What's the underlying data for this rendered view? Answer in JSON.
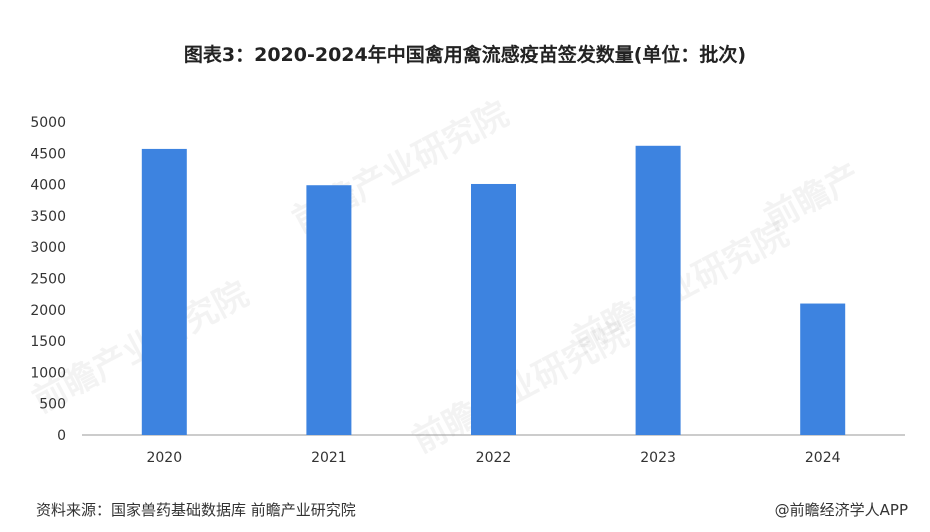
{
  "title": "图表3：2020-2024年中国禽用禽流感疫苗签发数量(单位：批次)",
  "footer": {
    "source": "资料来源：国家兽药基础数据库 前瞻产业研究院",
    "brand": "@前瞻经济学人APP"
  },
  "watermarks": [
    "前瞻产业研究院",
    "前瞻产业研究院",
    "前瞻产业研究院",
    "前瞻产",
    "前瞻产业研究院"
  ],
  "chart_data": {
    "type": "bar",
    "categories": [
      "2020",
      "2021",
      "2022",
      "2023",
      "2024"
    ],
    "values": [
      4570,
      3990,
      4010,
      4620,
      2100
    ],
    "ylim": [
      0,
      5000
    ],
    "yticks": [
      0,
      500,
      1000,
      1500,
      2000,
      2500,
      3000,
      3500,
      4000,
      4500,
      5000
    ],
    "grid": false,
    "bar_color": "#3d83e0",
    "xlabel": "",
    "ylabel": ""
  }
}
